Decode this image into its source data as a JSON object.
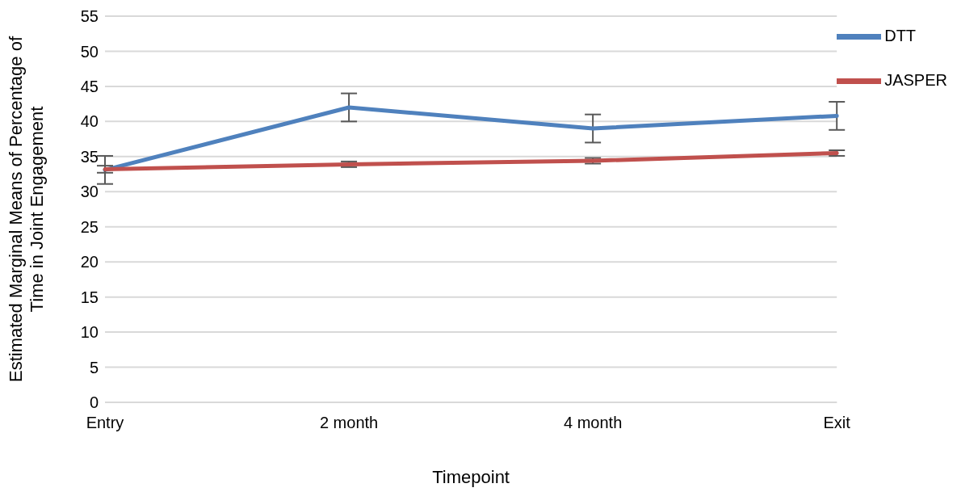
{
  "chart_data": {
    "type": "line",
    "xlabel": "Timepoint",
    "ylabel": "Estimated Marginal Means of Percentage of Time in Joint Engagement",
    "categories": [
      "Entry",
      "2 month",
      "4 month",
      "Exit"
    ],
    "series": [
      {
        "name": "DTT",
        "color": "#4f81bd",
        "values": [
          33.1,
          42.0,
          39.0,
          40.8
        ],
        "errors": [
          2,
          2,
          2,
          2
        ]
      },
      {
        "name": "JASPER",
        "color": "#c0504d",
        "values": [
          33.2,
          33.9,
          34.4,
          35.5
        ],
        "errors": [
          0.5,
          0.4,
          0.4,
          0.4
        ]
      }
    ],
    "ylim": [
      0,
      55
    ],
    "yticks": [
      0,
      5,
      10,
      15,
      20,
      25,
      30,
      35,
      40,
      45,
      50,
      55
    ],
    "grid": "y",
    "legend": "top right",
    "marker": "none",
    "line_style": "solid"
  }
}
